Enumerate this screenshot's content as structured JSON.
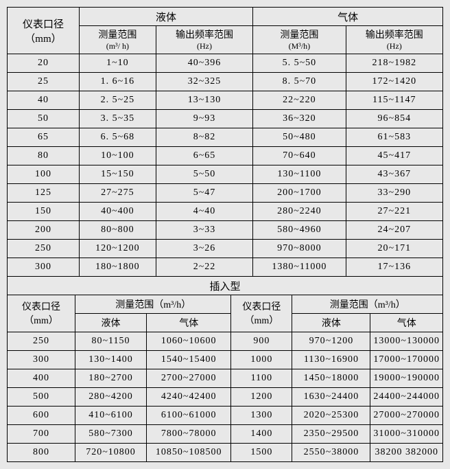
{
  "table1": {
    "header": {
      "diameter_label": "仪表口径",
      "diameter_unit": "（mm）",
      "liquid_label": "液体",
      "gas_label": "气体",
      "range_label": "测量范围",
      "liquid_range_unit": "(m³/ h)",
      "freq_label": "输出频率范围",
      "freq_unit": "(Hz)",
      "gas_range_unit": "(M³/h)"
    },
    "rows": [
      {
        "d": "20",
        "lr": "1~10",
        "lf": "40~396",
        "gr": "5. 5~50",
        "gf": "218~1982"
      },
      {
        "d": "25",
        "lr": "1. 6~16",
        "lf": "32~325",
        "gr": "8. 5~70",
        "gf": "172~1420"
      },
      {
        "d": "40",
        "lr": "2. 5~25",
        "lf": "13~130",
        "gr": "22~220",
        "gf": "115~1147"
      },
      {
        "d": "50",
        "lr": "3. 5~35",
        "lf": "9~93",
        "gr": "36~320",
        "gf": "96~854"
      },
      {
        "d": "65",
        "lr": "6. 5~68",
        "lf": "8~82",
        "gr": "50~480",
        "gf": "61~583"
      },
      {
        "d": "80",
        "lr": "10~100",
        "lf": "6~65",
        "gr": "70~640",
        "gf": "45~417"
      },
      {
        "d": "100",
        "lr": "15~150",
        "lf": "5~50",
        "gr": "130~1100",
        "gf": "43~367"
      },
      {
        "d": "125",
        "lr": "27~275",
        "lf": "5~47",
        "gr": "200~1700",
        "gf": "33~290"
      },
      {
        "d": "150",
        "lr": "40~400",
        "lf": "4~40",
        "gr": "280~2240",
        "gf": "27~221"
      },
      {
        "d": "200",
        "lr": "80~800",
        "lf": "3~33",
        "gr": "580~4960",
        "gf": "24~207"
      },
      {
        "d": "250",
        "lr": "120~1200",
        "lf": "3~26",
        "gr": "970~8000",
        "gf": "20~171"
      },
      {
        "d": "300",
        "lr": "180~1800",
        "lf": "2~22",
        "gr": "1380~11000",
        "gf": "17~136"
      }
    ]
  },
  "table2": {
    "header": {
      "insert_label": "插入型",
      "diameter_label": "仪表口径",
      "diameter_unit": "（mm）",
      "range_label": "测量范围（m³/h）",
      "liquid_label": "液体",
      "gas_label": "气体"
    },
    "rows": [
      {
        "d1": "250",
        "l1": "80~1150",
        "g1": "1060~10600",
        "d2": "900",
        "l2": "970~1200",
        "g2": "13000~130000"
      },
      {
        "d1": "300",
        "l1": "130~1400",
        "g1": "1540~15400",
        "d2": "1000",
        "l2": "1130~16900",
        "g2": "17000~170000"
      },
      {
        "d1": "400",
        "l1": "180~2700",
        "g1": "2700~27000",
        "d2": "1100",
        "l2": "1450~18000",
        "g2": "19000~190000"
      },
      {
        "d1": "500",
        "l1": "280~4200",
        "g1": "4240~42400",
        "d2": "1200",
        "l2": "1630~24400",
        "g2": "24400~244000"
      },
      {
        "d1": "600",
        "l1": "410~6100",
        "g1": "6100~61000",
        "d2": "1300",
        "l2": "2020~25300",
        "g2": "27000~270000"
      },
      {
        "d1": "700",
        "l1": "580~7300",
        "g1": "7800~78000",
        "d2": "1400",
        "l2": "2350~29500",
        "g2": "31000~310000"
      },
      {
        "d1": "800",
        "l1": "720~10800",
        "g1": "10850~108500",
        "d2": "1500",
        "l2": "2550~38000",
        "g2": "38200 382000"
      }
    ]
  },
  "colors": {
    "background": "#e8e8e8",
    "border": "#000000",
    "text": "#000000"
  }
}
